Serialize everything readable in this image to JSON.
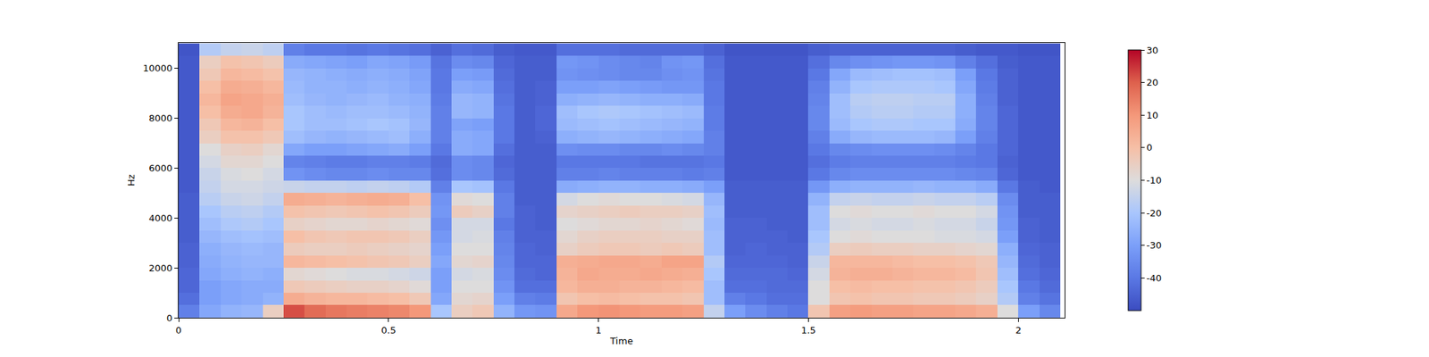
{
  "chart_data": {
    "type": "heatmap",
    "x_label": "Time",
    "y_label": "Hz",
    "color": "coolwarm",
    "xlim": [
      0,
      2.11
    ],
    "ylim": [
      0,
      11025
    ],
    "xticks": [
      0,
      0.5,
      1,
      1.5,
      2
    ],
    "yticks": [
      0,
      2000,
      4000,
      6000,
      8000,
      10000
    ],
    "zlim": [
      -50,
      30
    ],
    "zticks": [
      -40,
      -30,
      -20,
      -10,
      0,
      10,
      20,
      30
    ],
    "x": [
      0.025,
      0.075,
      0.125,
      0.175,
      0.225,
      0.275,
      0.325,
      0.375,
      0.425,
      0.475,
      0.525,
      0.575,
      0.625,
      0.675,
      0.725,
      0.775,
      0.825,
      0.875,
      0.925,
      0.975,
      1.025,
      1.075,
      1.125,
      1.175,
      1.225,
      1.275,
      1.325,
      1.375,
      1.425,
      1.475,
      1.525,
      1.575,
      1.625,
      1.675,
      1.725,
      1.775,
      1.825,
      1.875,
      1.925,
      1.975,
      2.025,
      2.075
    ],
    "y": [
      250,
      750,
      1250,
      1750,
      2250,
      2750,
      3250,
      3750,
      4250,
      4750,
      5250,
      5750,
      6250,
      6750,
      7250,
      7750,
      8250,
      8750,
      9250,
      9750,
      10250,
      10750
    ],
    "cells": [
      [
        -38,
        -42,
        -44,
        -44,
        -45,
        -45,
        -46,
        -46,
        -46,
        -46,
        -47,
        -47,
        -47,
        -47,
        -47,
        -47,
        -47,
        -47,
        -47,
        -47,
        -47,
        -48
      ],
      [
        -28,
        -30,
        -30,
        -28,
        -27,
        -26,
        -24,
        -22,
        -20,
        -17,
        -15,
        -14,
        -12,
        -10,
        -5,
        -3,
        0,
        2,
        0,
        -3,
        -5,
        -18
      ],
      [
        -25,
        -28,
        -28,
        -26,
        -25,
        -24,
        -22,
        -19,
        -17,
        -14,
        -12,
        -11,
        -8,
        -6,
        -1,
        2,
        5,
        7,
        5,
        2,
        -1,
        -15
      ],
      [
        -24,
        -27,
        -27,
        -25,
        -24,
        -23,
        -21,
        -18,
        -16,
        -13,
        -12,
        -10,
        -8,
        -5,
        -1,
        3,
        6,
        6,
        4,
        1,
        -2,
        -14
      ],
      [
        -5,
        -25,
        -27,
        -26,
        -24,
        -24,
        -22,
        -20,
        -18,
        -15,
        -13,
        -12,
        -10,
        -8,
        -3,
        0,
        3,
        4,
        2,
        -1,
        -4,
        -16
      ],
      [
        22,
        5,
        -3,
        -8,
        2,
        -4,
        0,
        -6,
        -1,
        5,
        -14,
        -33,
        -37,
        -28,
        -22,
        -20,
        -20,
        -22,
        -23,
        -24,
        -27,
        -38
      ],
      [
        18,
        3,
        -4,
        -9,
        1,
        -5,
        -2,
        -7,
        -2,
        4,
        -15,
        -35,
        -38,
        -30,
        -24,
        -22,
        -22,
        -24,
        -25,
        -25,
        -28,
        -40
      ],
      [
        16,
        2,
        -5,
        -10,
        0,
        -5,
        -3,
        -8,
        -3,
        3,
        -15,
        -36,
        -39,
        -30,
        -25,
        -22,
        -23,
        -25,
        -25,
        -26,
        -29,
        -40
      ],
      [
        15,
        2,
        -6,
        -11,
        -1,
        -4,
        -2,
        -8,
        -2,
        4,
        -16,
        -36,
        -39,
        -29,
        -24,
        -21,
        -22,
        -24,
        -26,
        -27,
        -30,
        -41
      ],
      [
        14,
        1,
        -6,
        -11,
        -2,
        -5,
        -2,
        -7,
        -1,
        5,
        -15,
        -35,
        -38,
        -28,
        -23,
        -20,
        -22,
        -23,
        -25,
        -26,
        -28,
        -40
      ],
      [
        13,
        0,
        -7,
        -12,
        -3,
        -6,
        -3,
        -8,
        -2,
        4,
        -16,
        -36,
        -38,
        -27,
        -22,
        -21,
        -23,
        -25,
        -26,
        -27,
        -29,
        -41
      ],
      [
        10,
        -3,
        -9,
        -13,
        -5,
        -7,
        -5,
        -9,
        -4,
        0,
        -18,
        -36,
        -39,
        -30,
        -26,
        -24,
        -25,
        -26,
        -28,
        -29,
        -31,
        -42
      ],
      [
        -20,
        -28,
        -30,
        -30,
        -28,
        -30,
        -32,
        -34,
        -32,
        -33,
        -38,
        -42,
        -43,
        -40,
        -38,
        -38,
        -38,
        -39,
        -40,
        -40,
        -41,
        -45
      ],
      [
        -5,
        -8,
        -10,
        -12,
        -8,
        -10,
        -12,
        -12,
        -4,
        -9,
        -20,
        -35,
        -35,
        -27,
        -27,
        -29,
        -24,
        -24,
        -27,
        -30,
        -35,
        -42
      ],
      [
        -3,
        -7,
        -10,
        -11,
        -7,
        -10,
        -11,
        -12,
        -6,
        -10,
        -21,
        -36,
        -36,
        -28,
        -28,
        -30,
        -25,
        -25,
        -28,
        -31,
        -36,
        -43
      ],
      [
        -25,
        -30,
        -33,
        -35,
        -36,
        -37,
        -38,
        -40,
        -38,
        -38,
        -40,
        -43,
        -44,
        -42,
        -40,
        -40,
        -40,
        -41,
        -42,
        -43,
        -44,
        -46
      ],
      [
        -32,
        -38,
        -42,
        -43,
        -44,
        -44,
        -45,
        -45,
        -45,
        -46,
        -46,
        -46,
        -46,
        -46,
        -46,
        -46,
        -46,
        -46,
        -46,
        -46,
        -46,
        -47
      ],
      [
        -33,
        -39,
        -42,
        -44,
        -44,
        -45,
        -45,
        -46,
        -46,
        -46,
        -46,
        -46,
        -46,
        -46,
        -45,
        -44,
        -44,
        -45,
        -45,
        -46,
        -46,
        -47
      ],
      [
        6,
        -2,
        2,
        3,
        4,
        -6,
        -8,
        -10,
        -7,
        -12,
        -27,
        -38,
        -40,
        -34,
        -26,
        -23,
        -22,
        -26,
        -30,
        -33,
        -32,
        -42
      ],
      [
        10,
        0,
        4,
        6,
        5,
        -4,
        -6,
        -9,
        -6,
        -10,
        -26,
        -38,
        -40,
        -35,
        -25,
        -22,
        -20,
        -25,
        -30,
        -34,
        -33,
        -42
      ],
      [
        11,
        1,
        4,
        5,
        6,
        -3,
        -5,
        -8,
        -5,
        -9,
        -25,
        -37,
        -40,
        -35,
        -24,
        -21,
        -19,
        -24,
        -29,
        -35,
        -35,
        -42
      ],
      [
        10,
        0,
        3,
        5,
        6,
        -3,
        -5,
        -8,
        -4,
        -10,
        -25,
        -38,
        -40,
        -36,
        -25,
        -22,
        -20,
        -25,
        -30,
        -36,
        -36,
        -43
      ],
      [
        9,
        -1,
        3,
        6,
        5,
        -4,
        -5,
        -7,
        -5,
        -10,
        -26,
        -38,
        -41,
        -36,
        -26,
        -23,
        -21,
        -26,
        -31,
        -36,
        -37,
        -43
      ],
      [
        9,
        -1,
        2,
        5,
        7,
        -3,
        -6,
        -8,
        -5,
        -11,
        -26,
        -38,
        -41,
        -35,
        -27,
        -24,
        -22,
        -26,
        -32,
        -34,
        -33,
        -43
      ],
      [
        8,
        -2,
        1,
        4,
        7,
        -4,
        -6,
        -9,
        -6,
        -12,
        -27,
        -39,
        -41,
        -36,
        -28,
        -25,
        -23,
        -27,
        -32,
        -33,
        -32,
        -43
      ],
      [
        -15,
        -22,
        -22,
        -20,
        -18,
        -22,
        -22,
        -23,
        -22,
        -24,
        -30,
        -38,
        -40,
        -38,
        -38,
        -39,
        -39,
        -40,
        -40,
        -41,
        -42,
        -45
      ],
      [
        -30,
        -38,
        -42,
        -43,
        -44,
        -45,
        -45,
        -45,
        -46,
        -46,
        -46,
        -47,
        -47,
        -47,
        -47,
        -47,
        -47,
        -47,
        -47,
        -47,
        -47,
        -48
      ],
      [
        -35,
        -40,
        -42,
        -43,
        -44,
        -44,
        -45,
        -45,
        -46,
        -46,
        -46,
        -47,
        -47,
        -47,
        -47,
        -47,
        -47,
        -47,
        -47,
        -47,
        -47,
        -48
      ],
      [
        -38,
        -42,
        -43,
        -43,
        -44,
        -45,
        -45,
        -46,
        -46,
        -46,
        -46,
        -47,
        -47,
        -47,
        -47,
        -47,
        -47,
        -47,
        -47,
        -47,
        -47,
        -48
      ],
      [
        -40,
        -42,
        -43,
        -44,
        -45,
        -45,
        -46,
        -46,
        -46,
        -46,
        -46,
        -47,
        -47,
        -47,
        -47,
        -47,
        -47,
        -47,
        -47,
        -47,
        -47,
        -48
      ],
      [
        -2,
        -10,
        -10,
        -12,
        -14,
        -18,
        -20,
        -22,
        -22,
        -25,
        -32,
        -40,
        -42,
        -40,
        -38,
        -36,
        -36,
        -37,
        -38,
        -40,
        -42,
        -46
      ],
      [
        8,
        -2,
        0,
        3,
        2,
        -5,
        -10,
        -12,
        -10,
        -15,
        -26,
        -36,
        -39,
        -36,
        -27,
        -23,
        -22,
        -22,
        -25,
        -28,
        -36,
        -45
      ],
      [
        9,
        -1,
        1,
        4,
        2,
        -4,
        -9,
        -11,
        -9,
        -14,
        -25,
        -35,
        -38,
        -35,
        -24,
        -20,
        -18,
        -17,
        -20,
        -23,
        -34,
        -45
      ],
      [
        8,
        -2,
        0,
        4,
        2,
        -5,
        -10,
        -12,
        -10,
        -15,
        -25,
        -35,
        -38,
        -34,
        -23,
        -19,
        -17,
        -16,
        -19,
        -22,
        -33,
        -45
      ],
      [
        8,
        -2,
        0,
        3,
        1,
        -5,
        -10,
        -12,
        -10,
        -15,
        -25,
        -35,
        -38,
        -34,
        -23,
        -19,
        -17,
        -16,
        -19,
        -21,
        -32,
        -45
      ],
      [
        7,
        -3,
        -1,
        2,
        0,
        -6,
        -10,
        -11,
        -9,
        -14,
        -24,
        -35,
        -38,
        -34,
        -23,
        -20,
        -18,
        -17,
        -19,
        -21,
        -32,
        -45
      ],
      [
        7,
        -3,
        -1,
        2,
        0,
        -6,
        -11,
        -12,
        -10,
        -15,
        -25,
        -35,
        -38,
        -35,
        -24,
        -20,
        -18,
        -17,
        -20,
        -22,
        -33,
        -45
      ],
      [
        6,
        -4,
        -2,
        1,
        -1,
        -7,
        -11,
        -12,
        -10,
        -15,
        -25,
        -36,
        -39,
        -37,
        -30,
        -27,
        -26,
        -26,
        -28,
        -30,
        -38,
        -46
      ],
      [
        4,
        -6,
        -4,
        -2,
        -3,
        -8,
        -12,
        -14,
        -12,
        -17,
        -27,
        -37,
        -40,
        -40,
        -38,
        -37,
        -37,
        -38,
        -39,
        -40,
        -42,
        -47
      ],
      [
        -10,
        -18,
        -20,
        -22,
        -24,
        -26,
        -30,
        -32,
        -33,
        -35,
        -40,
        -44,
        -45,
        -44,
        -44,
        -44,
        -44,
        -45,
        -45,
        -45,
        -46,
        -47
      ],
      [
        -30,
        -38,
        -40,
        -42,
        -43,
        -44,
        -45,
        -45,
        -46,
        -46,
        -46,
        -47,
        -47,
        -47,
        -47,
        -47,
        -47,
        -47,
        -47,
        -47,
        -47,
        -48
      ],
      [
        -36,
        -41,
        -43,
        -44,
        -45,
        -45,
        -46,
        -46,
        -46,
        -46,
        -47,
        -47,
        -47,
        -47,
        -47,
        -47,
        -47,
        -47,
        -47,
        -47,
        -47,
        -48
      ]
    ]
  }
}
